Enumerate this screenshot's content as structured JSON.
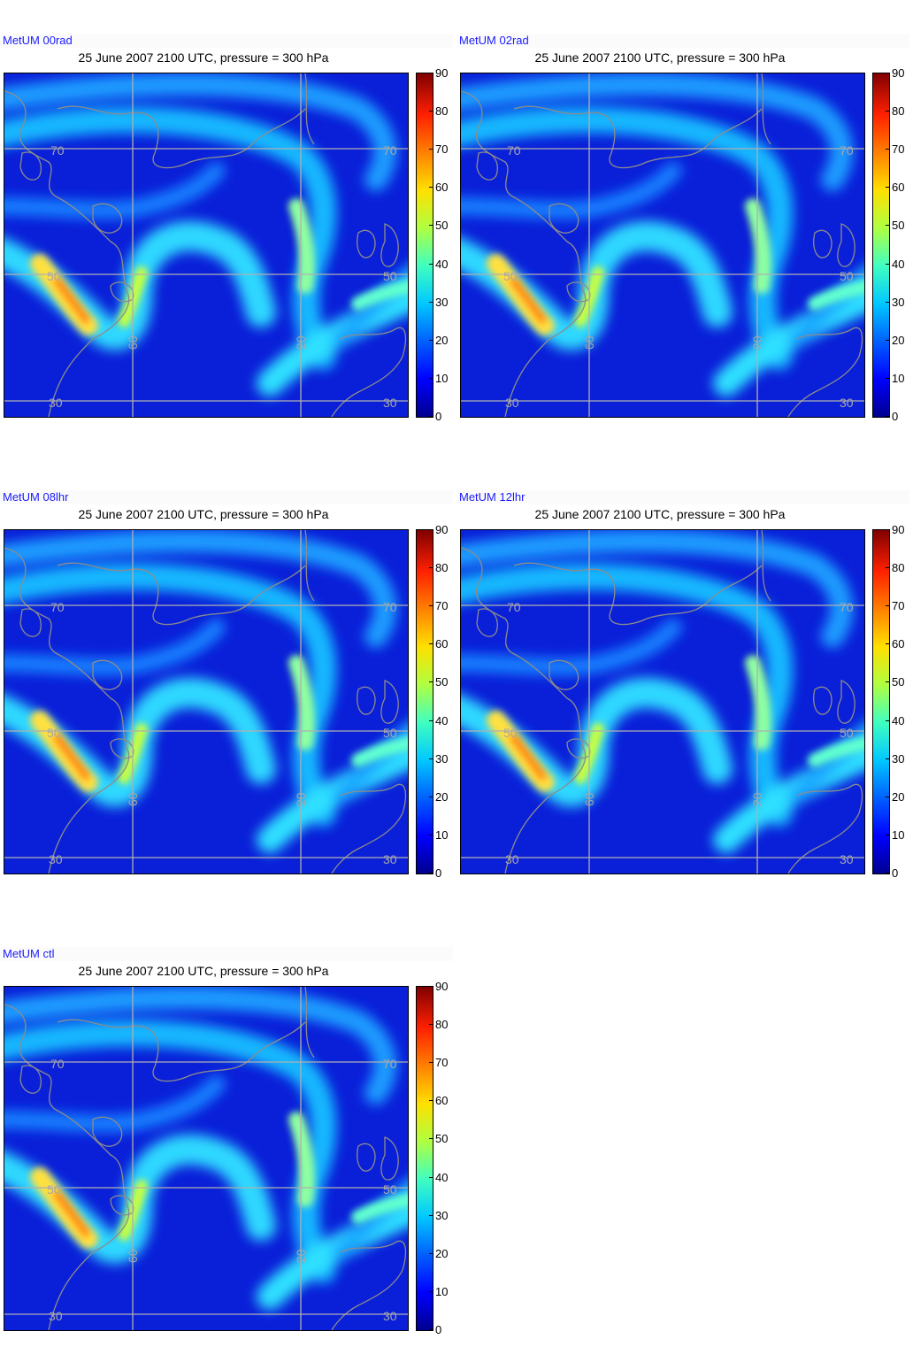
{
  "panels": [
    {
      "model": "MetUM 00rad",
      "title": "25 June 2007 2100 UTC, pressure = 300 hPa"
    },
    {
      "model": "MetUM 02rad",
      "title": "25 June 2007 2100 UTC, pressure = 300 hPa"
    },
    {
      "model": "MetUM 08lhr",
      "title": "25 June 2007 2100 UTC, pressure = 300 hPa"
    },
    {
      "model": "MetUM 12lhr",
      "title": "25 June 2007 2100 UTC, pressure = 300 hPa"
    },
    {
      "model": "MetUM ctl",
      "title": "25 June 2007 2100 UTC, pressure = 300 hPa"
    }
  ],
  "colorbar": {
    "ticks": [
      "90",
      "80",
      "70",
      "60",
      "50",
      "40",
      "30",
      "20",
      "10",
      "0"
    ],
    "min": 0,
    "max": 90,
    "colormap": "jet"
  },
  "grid_labels": {
    "lat": [
      "70",
      "50",
      "30"
    ],
    "lon": [
      "60",
      "20"
    ]
  },
  "colors": {
    "background": "#0a1fd8",
    "jet_core": "#ff8000",
    "coast": "#8c8c8c",
    "model_label": "#1a1aff"
  }
}
